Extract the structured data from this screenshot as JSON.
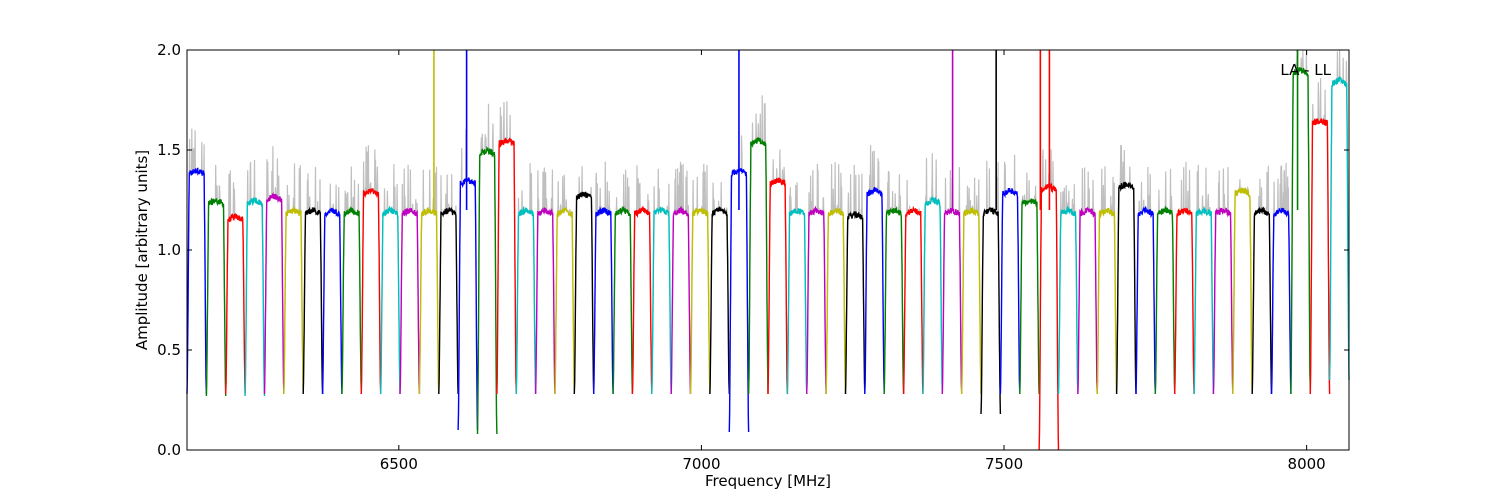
{
  "chart_data": {
    "type": "line",
    "title": "",
    "xlabel": "Frequency [MHz]",
    "ylabel": "Amplitude [arbitrary units]",
    "xlim": [
      6150,
      8070
    ],
    "ylim": [
      0.0,
      2.0
    ],
    "xticks": [
      6500,
      7000,
      7500,
      8000
    ],
    "xtick_labels": [
      "6500",
      "7000",
      "7500",
      "8000"
    ],
    "yticks": [
      0.0,
      0.5,
      1.0,
      1.5,
      2.0
    ],
    "ytick_labels": [
      "0.0",
      "0.5",
      "1.0",
      "1.5",
      "2.0"
    ],
    "grid": false,
    "annotation": "LA - LL",
    "channel_width_mhz": 32,
    "channel_start_mhz": 6150,
    "color_cycle": [
      "#0000ff",
      "#008000",
      "#ff0000",
      "#00bfbf",
      "#bf00bf",
      "#bfbf00",
      "#000000"
    ],
    "background_trace_color": "#bfbfbf",
    "channel_peaks": [
      1.4,
      1.25,
      1.17,
      1.25,
      1.27,
      1.2,
      1.2,
      1.2,
      1.2,
      1.3,
      1.2,
      1.2,
      1.2,
      1.2,
      1.35,
      1.5,
      1.55,
      1.2,
      1.2,
      1.2,
      1.28,
      1.2,
      1.2,
      1.2,
      1.2,
      1.2,
      1.2,
      1.2,
      1.4,
      1.55,
      1.35,
      1.2,
      1.2,
      1.2,
      1.18,
      1.3,
      1.2,
      1.2,
      1.25,
      1.2,
      1.2,
      1.2,
      1.3,
      1.25,
      1.32,
      1.2,
      1.2,
      1.2,
      1.33,
      1.2,
      1.2,
      1.2,
      1.2,
      1.2,
      1.3,
      1.2,
      1.2,
      1.9,
      1.65,
      1.85
    ],
    "channel_minima": [
      0.28,
      0.27,
      0.28,
      0.27,
      0.28,
      0.28,
      0.28,
      0.28,
      0.28,
      0.28,
      0.28,
      0.28,
      0.28,
      0.28,
      0.1,
      0.08,
      0.28,
      0.28,
      0.28,
      0.28,
      0.28,
      0.28,
      0.28,
      0.28,
      0.28,
      0.28,
      0.28,
      0.28,
      0.09,
      0.28,
      0.28,
      0.28,
      0.28,
      0.28,
      0.28,
      0.28,
      0.28,
      0.28,
      0.28,
      0.28,
      0.28,
      0.18,
      0.28,
      0.28,
      0.0,
      0.28,
      0.28,
      0.28,
      0.28,
      0.28,
      0.28,
      0.28,
      0.28,
      0.28,
      0.28,
      0.28,
      0.28,
      0.28,
      0.28,
      0.35
    ],
    "rfi_spikes": [
      {
        "x": 6558,
        "y": 2.0
      },
      {
        "x": 6612,
        "y": 2.0
      },
      {
        "x": 7062,
        "y": 2.0
      },
      {
        "x": 7415,
        "y": 2.0
      },
      {
        "x": 7487,
        "y": 2.0
      },
      {
        "x": 7560,
        "y": 2.0
      },
      {
        "x": 7575,
        "y": 2.0
      },
      {
        "x": 7985,
        "y": 2.0
      }
    ]
  }
}
